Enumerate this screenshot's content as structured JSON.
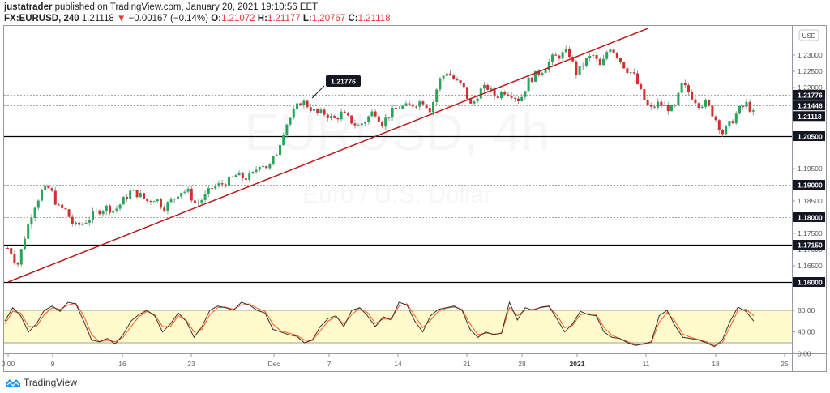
{
  "header": {
    "author": "justatrader",
    "published_text": "published on TradingView.com, January 20, 2021 19:10:56 EET",
    "symbol": "FX:EURUSD, 240",
    "last_price": "1.21118",
    "change_arrow": "▼",
    "change": "−0.00167 (−0.14%)",
    "ohlc": [
      {
        "label": "O:",
        "value": "1.21072"
      },
      {
        "label": "H:",
        "value": "1.21177"
      },
      {
        "label": "L:",
        "value": "1.20767"
      },
      {
        "label": "C:",
        "value": "1.21118"
      }
    ]
  },
  "watermark": {
    "title": "EURUSD, 4h",
    "subtitle": "Euro / U.S. Dollar"
  },
  "price_axis": {
    "currency_button": "USD",
    "ticks": [
      "1.23000",
      "1.22500",
      "1.22000",
      "1.19500",
      "1.18500",
      "1.17500",
      "1.17000",
      "1.16500"
    ],
    "tick_prices": [
      1.23,
      1.225,
      1.22,
      1.195,
      1.185,
      1.175,
      1.17,
      1.165
    ],
    "labels": [
      {
        "text": "1.21776",
        "price": 1.21776,
        "line": "dotted"
      },
      {
        "text": "1.21446",
        "price": 1.21446,
        "line": "dotted"
      },
      {
        "text": "1.21118",
        "price": 1.21118,
        "line": "none"
      },
      {
        "text": "1.20500",
        "price": 1.205,
        "line": "solid"
      },
      {
        "text": "1.19000",
        "price": 1.19,
        "line": "dotted"
      },
      {
        "text": "1.18000",
        "price": 1.18,
        "line": "dotted"
      },
      {
        "text": "1.17150",
        "price": 1.1715,
        "line": "solid"
      },
      {
        "text": "1.16000",
        "price": 1.16,
        "line": "solid"
      }
    ]
  },
  "callout": {
    "text": "1.21776"
  },
  "oscillator": {
    "ticks": [
      "80.00",
      "40.00",
      "0.00"
    ],
    "band": [
      20,
      80
    ]
  },
  "time_axis": {
    "ticks": [
      {
        "label": "0:00",
        "x": 10,
        "bold": false
      },
      {
        "label": "9",
        "x": 65,
        "bold": false
      },
      {
        "label": "16",
        "x": 151,
        "bold": false
      },
      {
        "label": "23",
        "x": 236,
        "bold": false
      },
      {
        "label": "Dec",
        "x": 338,
        "bold": false
      },
      {
        "label": "7",
        "x": 406,
        "bold": false
      },
      {
        "label": "14",
        "x": 491,
        "bold": false
      },
      {
        "label": "21",
        "x": 576,
        "bold": false
      },
      {
        "label": "28",
        "x": 644,
        "bold": false
      },
      {
        "label": "2021",
        "x": 712,
        "bold": true
      },
      {
        "label": "11",
        "x": 797,
        "bold": false
      },
      {
        "label": "18",
        "x": 883,
        "bold": false
      },
      {
        "label": "25",
        "x": 968,
        "bold": false
      }
    ]
  },
  "colors": {
    "up": "#26a65b",
    "down": "#d32f2f",
    "trendline": "#b71c1c",
    "stoch_k": "#333333",
    "stoch_d": "#ff5722",
    "band_fill": "#fffbcc"
  },
  "branding": {
    "logo_text": "TradingView"
  },
  "chart_data": {
    "type": "candlestick",
    "title": "FX:EURUSD, 240",
    "xlabel": "",
    "ylabel": "USD",
    "ylim": [
      1.155,
      1.236
    ],
    "horizontal_levels": [
      1.205,
      1.1715,
      1.16
    ],
    "dotted_levels": [
      1.21776,
      1.21446,
      1.19,
      1.18
    ],
    "trendline": {
      "from": {
        "x": 10,
        "price": 1.16
      },
      "to": {
        "x": 800,
        "price": 1.2383
      }
    },
    "path_x": [
      10,
      20,
      30,
      40,
      50,
      60,
      70,
      80,
      90,
      100,
      110,
      120,
      130,
      140,
      150,
      160,
      170,
      180,
      190,
      200,
      210,
      220,
      230,
      240,
      250,
      260,
      270,
      280,
      290,
      300,
      310,
      320,
      330,
      340,
      350,
      360,
      370,
      380,
      390,
      400,
      410,
      420,
      430,
      440,
      450,
      460,
      470,
      480,
      490,
      500,
      510,
      520,
      530,
      540,
      550,
      560,
      570,
      580,
      590,
      600,
      610,
      620,
      630,
      640,
      650,
      660,
      670,
      680,
      690,
      700,
      710,
      720,
      730,
      740,
      750,
      760,
      770,
      780,
      790,
      800,
      810,
      820,
      830,
      840,
      850,
      860,
      870,
      880,
      890,
      900,
      910,
      920,
      930
    ],
    "path_close": [
      1.1705,
      1.165,
      1.175,
      1.183,
      1.188,
      1.189,
      1.183,
      1.182,
      1.177,
      1.178,
      1.18,
      1.182,
      1.183,
      1.182,
      1.185,
      1.188,
      1.187,
      1.185,
      1.186,
      1.183,
      1.185,
      1.188,
      1.188,
      1.184,
      1.186,
      1.189,
      1.19,
      1.191,
      1.193,
      1.192,
      1.193,
      1.197,
      1.195,
      1.2,
      1.208,
      1.212,
      1.216,
      1.214,
      1.212,
      1.212,
      1.21,
      1.212,
      1.21,
      1.208,
      1.21,
      1.213,
      1.209,
      1.212,
      1.214,
      1.214,
      1.215,
      1.216,
      1.213,
      1.222,
      1.225,
      1.222,
      1.22,
      1.214,
      1.219,
      1.22,
      1.217,
      1.219,
      1.218,
      1.216,
      1.222,
      1.224,
      1.226,
      1.229,
      1.23,
      1.231,
      1.224,
      1.228,
      1.23,
      1.226,
      1.233,
      1.23,
      1.226,
      1.224,
      1.218,
      1.213,
      1.215,
      1.214,
      1.213,
      1.221,
      1.218,
      1.215,
      1.215,
      1.211,
      1.206,
      1.209,
      1.213,
      1.215,
      1.211
    ],
    "stochastic": {
      "k_values": [
        60,
        85,
        70,
        40,
        55,
        80,
        88,
        78,
        95,
        92,
        60,
        25,
        22,
        28,
        18,
        35,
        60,
        72,
        80,
        70,
        40,
        55,
        75,
        60,
        30,
        50,
        80,
        88,
        85,
        80,
        95,
        90,
        80,
        75,
        45,
        40,
        35,
        32,
        20,
        25,
        50,
        65,
        70,
        50,
        80,
        85,
        70,
        50,
        68,
        62,
        95,
        90,
        60,
        40,
        70,
        82,
        85,
        88,
        80,
        45,
        30,
        40,
        35,
        38,
        95,
        62,
        85,
        80,
        86,
        88,
        65,
        40,
        55,
        78,
        72,
        70,
        40,
        30,
        28,
        20,
        15,
        18,
        22,
        70,
        80,
        52,
        30,
        28,
        25,
        20,
        13,
        25,
        60,
        86,
        78,
        60
      ],
      "d_values": [
        55,
        78,
        75,
        50,
        50,
        72,
        85,
        82,
        90,
        93,
        70,
        35,
        22,
        25,
        22,
        30,
        50,
        68,
        78,
        72,
        50,
        50,
        70,
        62,
        40,
        45,
        72,
        85,
        86,
        82,
        90,
        92,
        84,
        78,
        55,
        42,
        38,
        34,
        25,
        24,
        42,
        60,
        68,
        55,
        72,
        84,
        76,
        56,
        64,
        64,
        88,
        92,
        70,
        48,
        62,
        78,
        84,
        86,
        82,
        55,
        35,
        38,
        36,
        37,
        85,
        70,
        80,
        82,
        85,
        87,
        72,
        48,
        52,
        72,
        74,
        72,
        48,
        34,
        28,
        22,
        17,
        17,
        20,
        58,
        76,
        60,
        36,
        30,
        26,
        22,
        15,
        20,
        50,
        80,
        82,
        70
      ]
    }
  }
}
